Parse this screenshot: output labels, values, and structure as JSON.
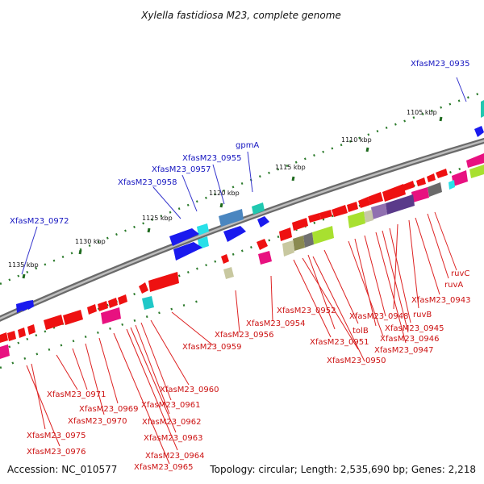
{
  "title": "Xylella fastidiosa M23, complete genome",
  "footer": {
    "accession": "Accession: NC_010577",
    "summary": "Topology: circular; Length: 2,535,690 bp; Genes: 2,218"
  },
  "colors": {
    "backbone": "#8a8a8a",
    "tick_dot": "#2a7a2a",
    "top_labels": "#1515c0",
    "bottom_labels": "#cc1111",
    "leader_top": "#3333cc",
    "leader_bottom": "#dd2222",
    "forward_gene": "#1a1aee",
    "reverse_gene": "#ee1111"
  },
  "ticks": [
    {
      "label": "1105 kbp"
    },
    {
      "label": "1110 kbp"
    },
    {
      "label": "1115 kbp"
    },
    {
      "label": "1120 kbp"
    },
    {
      "label": "1125 kbp"
    },
    {
      "label": "1130 kbp"
    },
    {
      "label": "1135 kbp"
    }
  ],
  "top_labels": [
    {
      "text": "XfasM23_0935"
    },
    {
      "text": "gpmA"
    },
    {
      "text": "XfasM23_0955"
    },
    {
      "text": "XfasM23_0957"
    },
    {
      "text": "XfasM23_0958"
    },
    {
      "text": "XfasM23_0972"
    }
  ],
  "bottom_labels": [
    {
      "text": "ruvC"
    },
    {
      "text": "ruvA"
    },
    {
      "text": "XfasM23_0943"
    },
    {
      "text": "ruvB"
    },
    {
      "text": "XfasM23_0948"
    },
    {
      "text": "XfasM23_0945"
    },
    {
      "text": "XfasM23_0946"
    },
    {
      "text": "XfasM23_0947"
    },
    {
      "text": "XfasM23_0952"
    },
    {
      "text": "tolB"
    },
    {
      "text": "XfasM23_0951"
    },
    {
      "text": "XfasM23_0950"
    },
    {
      "text": "XfasM23_0954"
    },
    {
      "text": "XfasM23_0956"
    },
    {
      "text": "XfasM23_0959"
    },
    {
      "text": "XfasM23_0960"
    },
    {
      "text": "XfasM23_0961"
    },
    {
      "text": "XfasM23_0962"
    },
    {
      "text": "XfasM23_0963"
    },
    {
      "text": "XfasM23_0964"
    },
    {
      "text": "XfasM23_0965"
    },
    {
      "text": "XfasM23_0969"
    },
    {
      "text": "XfasM23_0970"
    },
    {
      "text": "XfasM23_0971"
    },
    {
      "text": "XfasM23_0975"
    },
    {
      "text": "XfasM23_0976"
    }
  ]
}
